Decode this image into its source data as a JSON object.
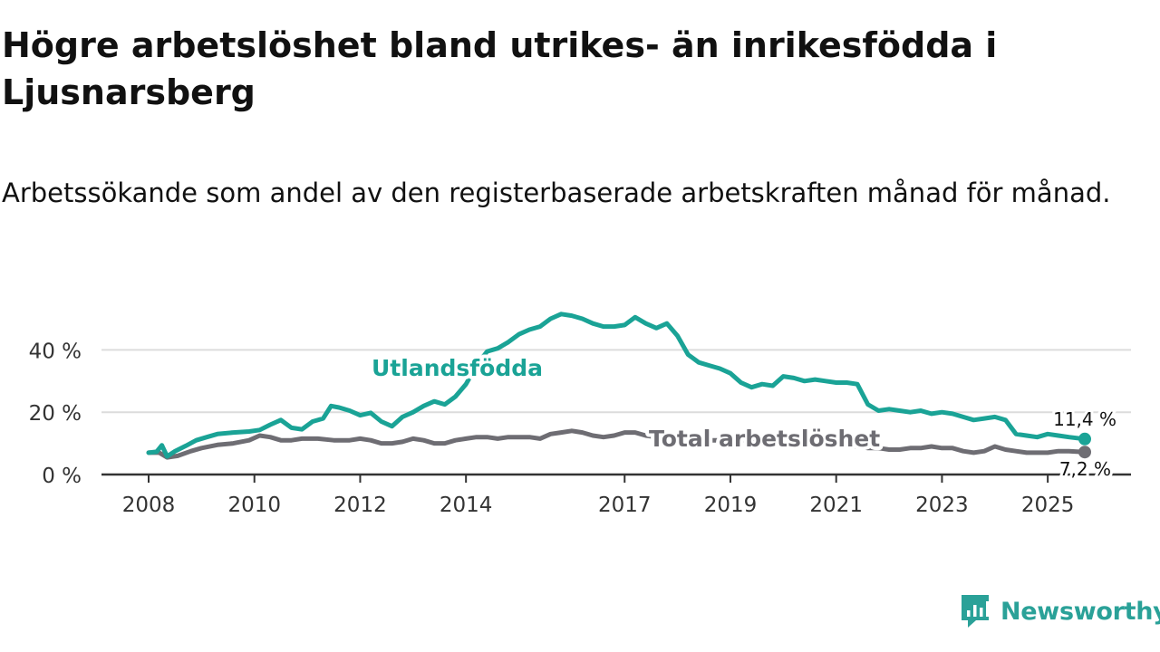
{
  "title": "Högre arbetslöshet bland utrikes- än inrikesfödda i Ljusnarsberg",
  "subtitle": "Arbetssökande som andel av den registerbaserade arbetskraften månad för månad.",
  "brand": {
    "name": "Newsworthy",
    "icon": "newsworthy-logo-icon"
  },
  "colors": {
    "foreign": "#1aa396",
    "total": "#6e6d73",
    "grid": "#dcdcdc",
    "axis": "#333333",
    "brand": "#2aa198"
  },
  "chart_data": {
    "type": "line",
    "title": "Högre arbetslöshet bland utrikes- än inrikesfödda i Ljusnarsberg",
    "xlabel": "",
    "ylabel": "",
    "xlim": [
      2008,
      2025.7
    ],
    "ylim": [
      0,
      50
    ],
    "x_ticks": [
      2008,
      2010,
      2012,
      2014,
      2017,
      2019,
      2021,
      2023,
      2025
    ],
    "x_tick_labels": [
      "2008",
      "2010",
      "2012",
      "2014",
      "2017",
      "2019",
      "2021",
      "2023",
      "2025"
    ],
    "y_ticks": [
      0,
      20,
      40
    ],
    "y_tick_labels": [
      "0 %",
      "20 %",
      "40 %"
    ],
    "grid": true,
    "series": [
      {
        "name": "Utlandsfödda",
        "color": "#1aa396",
        "end_label": "11,4 %",
        "x": [
          2008.0,
          2008.15,
          2008.25,
          2008.35,
          2008.5,
          2008.7,
          2008.9,
          2009.1,
          2009.3,
          2009.6,
          2009.9,
          2010.1,
          2010.3,
          2010.5,
          2010.7,
          2010.9,
          2011.1,
          2011.3,
          2011.45,
          2011.6,
          2011.8,
          2012.0,
          2012.2,
          2012.4,
          2012.6,
          2012.8,
          2013.0,
          2013.2,
          2013.4,
          2013.6,
          2013.8,
          2014.0,
          2014.2,
          2014.4,
          2014.6,
          2014.8,
          2015.0,
          2015.2,
          2015.4,
          2015.6,
          2015.8,
          2016.0,
          2016.2,
          2016.4,
          2016.6,
          2016.8,
          2017.0,
          2017.2,
          2017.4,
          2017.6,
          2017.8,
          2018.0,
          2018.2,
          2018.4,
          2018.6,
          2018.8,
          2019.0,
          2019.2,
          2019.4,
          2019.6,
          2019.8,
          2020.0,
          2020.2,
          2020.4,
          2020.6,
          2020.8,
          2021.0,
          2021.2,
          2021.4,
          2021.6,
          2021.8,
          2022.0,
          2022.2,
          2022.4,
          2022.6,
          2022.8,
          2023.0,
          2023.2,
          2023.4,
          2023.6,
          2023.8,
          2024.0,
          2024.2,
          2024.4,
          2024.6,
          2024.8,
          2025.0,
          2025.2,
          2025.4,
          2025.7
        ],
        "values": [
          7.0,
          7.3,
          9.4,
          5.8,
          7.5,
          9.2,
          11.0,
          12.0,
          13.0,
          13.5,
          13.8,
          14.3,
          16.0,
          17.5,
          15.0,
          14.5,
          17.0,
          18.0,
          22.0,
          21.5,
          20.5,
          19.0,
          19.8,
          17.0,
          15.5,
          18.5,
          20.0,
          22.0,
          23.5,
          22.5,
          25.0,
          29.0,
          35.0,
          39.5,
          40.5,
          42.5,
          45.0,
          46.5,
          47.5,
          50.0,
          51.5,
          51.0,
          50.0,
          48.5,
          47.5,
          47.5,
          48.0,
          50.5,
          48.5,
          47.0,
          48.5,
          44.5,
          38.5,
          36.0,
          35.0,
          34.0,
          32.5,
          29.5,
          28.0,
          29.0,
          28.5,
          31.5,
          31.0,
          30.0,
          30.5,
          30.0,
          29.5,
          29.5,
          29.0,
          22.5,
          20.5,
          21.0,
          20.5,
          20.0,
          20.5,
          19.5,
          20.0,
          19.5,
          18.5,
          17.5,
          18.0,
          18.5,
          17.5,
          13.0,
          12.5,
          12.0,
          13.0,
          12.5,
          12.0,
          11.4
        ]
      },
      {
        "name": "Total arbetslöshet",
        "color": "#6e6d73",
        "end_label": "7,2 %",
        "x": [
          2008.0,
          2008.2,
          2008.35,
          2008.55,
          2008.8,
          2009.0,
          2009.3,
          2009.6,
          2009.9,
          2010.1,
          2010.3,
          2010.5,
          2010.7,
          2010.9,
          2011.2,
          2011.5,
          2011.8,
          2012.0,
          2012.2,
          2012.4,
          2012.6,
          2012.8,
          2013.0,
          2013.2,
          2013.4,
          2013.6,
          2013.8,
          2014.0,
          2014.2,
          2014.4,
          2014.6,
          2014.8,
          2015.0,
          2015.2,
          2015.4,
          2015.6,
          2015.8,
          2016.0,
          2016.2,
          2016.4,
          2016.6,
          2016.8,
          2017.0,
          2017.2,
          2017.4,
          2017.6,
          2017.8,
          2018.0,
          2018.2,
          2018.4,
          2018.6,
          2018.8,
          2019.0,
          2019.2,
          2019.4,
          2019.6,
          2019.8,
          2020.0,
          2020.2,
          2020.4,
          2020.6,
          2020.8,
          2021.0,
          2021.2,
          2021.4,
          2021.6,
          2021.8,
          2022.0,
          2022.2,
          2022.4,
          2022.6,
          2022.8,
          2023.0,
          2023.2,
          2023.4,
          2023.6,
          2023.8,
          2024.0,
          2024.2,
          2024.4,
          2024.6,
          2024.8,
          2025.0,
          2025.2,
          2025.4,
          2025.7
        ],
        "values": [
          7.0,
          7.0,
          5.5,
          6.0,
          7.5,
          8.5,
          9.5,
          10.0,
          11.0,
          12.5,
          12.0,
          11.0,
          11.0,
          11.5,
          11.5,
          11.0,
          11.0,
          11.5,
          11.0,
          10.0,
          10.0,
          10.5,
          11.5,
          11.0,
          10.0,
          10.0,
          11.0,
          11.5,
          12.0,
          12.0,
          11.5,
          12.0,
          12.0,
          12.0,
          11.5,
          13.0,
          13.5,
          14.0,
          13.5,
          12.5,
          12.0,
          12.5,
          13.5,
          13.5,
          12.5,
          12.0,
          12.0,
          12.0,
          11.5,
          11.5,
          11.0,
          11.0,
          11.0,
          11.0,
          10.5,
          10.5,
          10.5,
          10.0,
          10.0,
          10.0,
          9.5,
          9.5,
          9.5,
          9.0,
          9.0,
          8.5,
          8.5,
          8.0,
          8.0,
          8.5,
          8.5,
          9.0,
          8.5,
          8.5,
          7.5,
          7.0,
          7.5,
          9.0,
          8.0,
          7.5,
          7.0,
          7.0,
          7.0,
          7.5,
          7.5,
          7.2
        ]
      }
    ],
    "annotations": [
      {
        "text": "Utlandsfödda",
        "series": "Utlandsfödda"
      },
      {
        "text": "Total arbetslöshet",
        "series": "Total arbetslöshet"
      }
    ]
  }
}
